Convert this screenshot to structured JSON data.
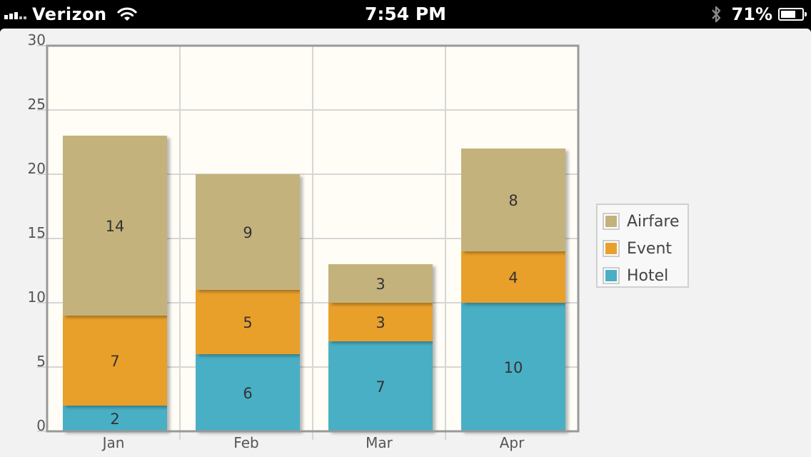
{
  "status_bar": {
    "carrier": "Verizon",
    "time": "7:54 PM",
    "battery_percent": "71%",
    "battery_level": 0.71,
    "icons": [
      "signal-icon",
      "wifi-icon",
      "bluetooth-icon",
      "battery-icon"
    ]
  },
  "chart_data": {
    "type": "bar",
    "stacked": true,
    "categories": [
      "Jan",
      "Feb",
      "Mar",
      "Apr"
    ],
    "series": [
      {
        "name": "Hotel",
        "values": [
          2,
          6,
          7,
          10
        ],
        "color": "#4aafc4"
      },
      {
        "name": "Event",
        "values": [
          7,
          5,
          3,
          4
        ],
        "color": "#e9a02c"
      },
      {
        "name": "Airfare",
        "values": [
          14,
          9,
          3,
          8
        ],
        "color": "#c4b27d"
      }
    ],
    "legend_order": [
      "Airfare",
      "Event",
      "Hotel"
    ],
    "yticks": [
      "0",
      "5",
      "10",
      "15",
      "20",
      "25",
      "30"
    ],
    "ylim": [
      0,
      30
    ],
    "grid": true,
    "legend_position": "right",
    "plot_background": "#fffdf6",
    "title": "",
    "xlabel": "",
    "ylabel": ""
  }
}
